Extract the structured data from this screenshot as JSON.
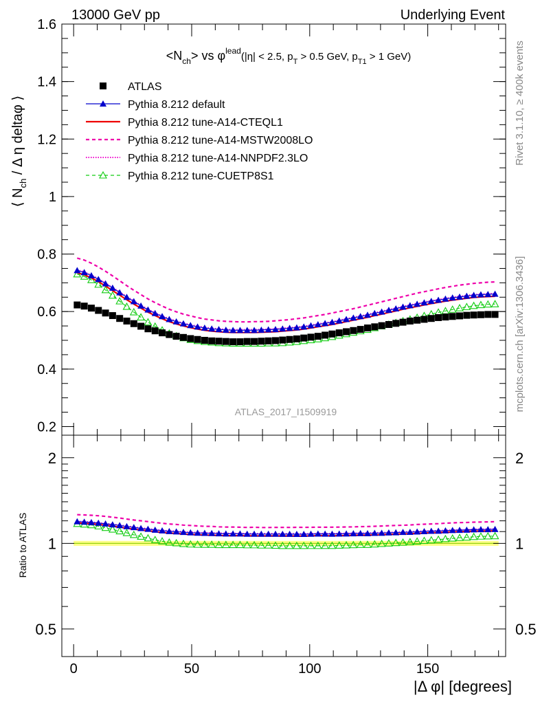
{
  "header": {
    "left": "13000 GeV pp",
    "right": "Underlying Event"
  },
  "plot_title": {
    "main": "<N",
    "main_sub": "ch",
    "main_rest": "> vs ",
    "phi": "φ",
    "phi_sup": "lead",
    "cuts_a": "(|η| < 2.5, p",
    "cuts_a_sub": "T",
    "cuts_b": " > 0.5 GeV, p",
    "cuts_b_sub": "T1",
    "cuts_c": " > 1 GeV)"
  },
  "ylabel_main": {
    "a": "⟨ N",
    "sub": "ch",
    "b": " / Δ η deltaφ ⟩"
  },
  "ylabel_ratio": "Ratio to ATLAS",
  "xlabel": "|Δ φ| [degrees]",
  "side_text": {
    "rivet": "Rivet 3.1.10, ≥ 400k events",
    "mcplots": "mcplots.cern.ch [arXiv:1306.3436]"
  },
  "analysis_label": "ATLAS_2017_I1509919",
  "colors": {
    "data": "#000000",
    "default": "#0000cc",
    "cteql1": "#ee0000",
    "mstw": "#ee00aa",
    "nnpdf": "#ee00cc",
    "cuetp": "#11cc11",
    "band": "#ffff88",
    "band_line": "#88cc00",
    "analysis": "#999999",
    "side": "#888888"
  },
  "chart_data": [
    {
      "type": "line",
      "panel": "main",
      "x": [
        1.5,
        4.5,
        7.5,
        10.5,
        13.5,
        16.5,
        19.5,
        22.5,
        25.5,
        28.5,
        31.5,
        34.5,
        37.5,
        40.5,
        43.5,
        46.5,
        49.5,
        52.5,
        55.5,
        58.5,
        61.5,
        64.5,
        67.5,
        70.5,
        73.5,
        76.5,
        79.5,
        82.5,
        85.5,
        88.5,
        91.5,
        94.5,
        97.5,
        100.5,
        103.5,
        106.5,
        109.5,
        112.5,
        115.5,
        118.5,
        121.5,
        124.5,
        127.5,
        130.5,
        133.5,
        136.5,
        139.5,
        142.5,
        145.5,
        148.5,
        151.5,
        154.5,
        157.5,
        160.5,
        163.5,
        166.5,
        169.5,
        172.5,
        175.5,
        178.5
      ],
      "ylim": [
        0.17,
        1.6
      ],
      "xlim": [
        -5,
        183
      ],
      "y_ticks": [
        "0.2",
        "0.4",
        "0.6",
        "0.8",
        "1",
        "1.2",
        "1.4",
        "1.6"
      ],
      "x_ticks": [
        "0",
        "50",
        "100",
        "150"
      ],
      "legend": "top-left",
      "series": [
        {
          "name": "ATLAS",
          "style": "data",
          "values": [
            0.623,
            0.619,
            0.612,
            0.604,
            0.595,
            0.586,
            0.576,
            0.567,
            0.558,
            0.549,
            0.54,
            0.533,
            0.526,
            0.52,
            0.514,
            0.51,
            0.506,
            0.503,
            0.5,
            0.498,
            0.497,
            0.496,
            0.495,
            0.495,
            0.496,
            0.496,
            0.497,
            0.498,
            0.499,
            0.501,
            0.503,
            0.505,
            0.508,
            0.511,
            0.514,
            0.518,
            0.522,
            0.526,
            0.53,
            0.534,
            0.538,
            0.543,
            0.547,
            0.551,
            0.555,
            0.559,
            0.563,
            0.567,
            0.57,
            0.573,
            0.576,
            0.579,
            0.581,
            0.583,
            0.585,
            0.587,
            0.588,
            0.589,
            0.59,
            0.59
          ]
        },
        {
          "name": "Pythia 8.212 default",
          "style": "default",
          "values": [
            0.743,
            0.736,
            0.725,
            0.712,
            0.697,
            0.682,
            0.666,
            0.65,
            0.635,
            0.62,
            0.606,
            0.594,
            0.583,
            0.573,
            0.565,
            0.558,
            0.552,
            0.547,
            0.543,
            0.54,
            0.538,
            0.536,
            0.535,
            0.535,
            0.535,
            0.535,
            0.536,
            0.537,
            0.538,
            0.54,
            0.542,
            0.544,
            0.547,
            0.551,
            0.555,
            0.559,
            0.563,
            0.568,
            0.573,
            0.578,
            0.583,
            0.588,
            0.594,
            0.599,
            0.605,
            0.61,
            0.616,
            0.621,
            0.626,
            0.631,
            0.636,
            0.64,
            0.644,
            0.648,
            0.651,
            0.654,
            0.657,
            0.659,
            0.66,
            0.661
          ]
        },
        {
          "name": "Pythia 8.212 tune-A14-CTEQL1",
          "style": "cteql1",
          "values": [
            0.735,
            0.728,
            0.717,
            0.704,
            0.689,
            0.673,
            0.657,
            0.641,
            0.626,
            0.612,
            0.598,
            0.586,
            0.575,
            0.565,
            0.557,
            0.55,
            0.544,
            0.539,
            0.535,
            0.532,
            0.53,
            0.528,
            0.527,
            0.527,
            0.527,
            0.527,
            0.528,
            0.529,
            0.53,
            0.532,
            0.534,
            0.536,
            0.539,
            0.543,
            0.547,
            0.551,
            0.555,
            0.56,
            0.565,
            0.57,
            0.575,
            0.58,
            0.586,
            0.591,
            0.597,
            0.602,
            0.608,
            0.613,
            0.618,
            0.623,
            0.628,
            0.632,
            0.636,
            0.64,
            0.643,
            0.646,
            0.649,
            0.651,
            0.652,
            0.653
          ]
        },
        {
          "name": "Pythia 8.212 tune-A14-MSTW2008LO",
          "style": "mstw",
          "values": [
            0.786,
            0.779,
            0.768,
            0.755,
            0.74,
            0.724,
            0.707,
            0.69,
            0.674,
            0.659,
            0.644,
            0.631,
            0.619,
            0.608,
            0.599,
            0.591,
            0.585,
            0.579,
            0.574,
            0.571,
            0.568,
            0.566,
            0.565,
            0.564,
            0.564,
            0.565,
            0.565,
            0.566,
            0.568,
            0.57,
            0.572,
            0.575,
            0.578,
            0.582,
            0.586,
            0.59,
            0.595,
            0.6,
            0.605,
            0.61,
            0.616,
            0.622,
            0.628,
            0.634,
            0.64,
            0.646,
            0.652,
            0.658,
            0.664,
            0.669,
            0.674,
            0.679,
            0.684,
            0.688,
            0.692,
            0.695,
            0.698,
            0.7,
            0.702,
            0.703
          ]
        },
        {
          "name": "Pythia 8.212 tune-A14-NNPDF2.3LO",
          "style": "nnpdf",
          "values": [
            0.745,
            0.738,
            0.727,
            0.714,
            0.699,
            0.684,
            0.668,
            0.652,
            0.637,
            0.622,
            0.608,
            0.596,
            0.585,
            0.575,
            0.567,
            0.56,
            0.554,
            0.549,
            0.545,
            0.542,
            0.54,
            0.538,
            0.537,
            0.537,
            0.537,
            0.537,
            0.538,
            0.539,
            0.54,
            0.542,
            0.544,
            0.546,
            0.549,
            0.553,
            0.557,
            0.561,
            0.565,
            0.57,
            0.575,
            0.58,
            0.585,
            0.59,
            0.596,
            0.601,
            0.607,
            0.612,
            0.618,
            0.623,
            0.628,
            0.633,
            0.638,
            0.642,
            0.646,
            0.65,
            0.653,
            0.656,
            0.659,
            0.661,
            0.662,
            0.663
          ]
        },
        {
          "name": "Pythia 8.212 tune-CUETP8S1",
          "style": "cuetp",
          "values": [
            0.73,
            0.722,
            0.71,
            0.694,
            0.675,
            0.656,
            0.636,
            0.617,
            0.598,
            0.58,
            0.563,
            0.548,
            0.535,
            0.524,
            0.515,
            0.508,
            0.502,
            0.498,
            0.495,
            0.493,
            0.491,
            0.49,
            0.489,
            0.489,
            0.489,
            0.489,
            0.489,
            0.49,
            0.49,
            0.491,
            0.493,
            0.495,
            0.498,
            0.501,
            0.504,
            0.508,
            0.512,
            0.517,
            0.522,
            0.527,
            0.532,
            0.537,
            0.543,
            0.549,
            0.555,
            0.561,
            0.567,
            0.573,
            0.579,
            0.585,
            0.591,
            0.597,
            0.602,
            0.607,
            0.612,
            0.616,
            0.62,
            0.623,
            0.625,
            0.626
          ]
        }
      ]
    },
    {
      "type": "line",
      "panel": "ratio",
      "ylabel": "Ratio to ATLAS",
      "xlabel": "|Δ φ| [degrees]",
      "ylim": [
        0.4,
        2.4
      ],
      "log_y": true,
      "y_ticks": [
        "0.5",
        "1",
        "2"
      ],
      "x_ticks": [
        "0",
        "50",
        "100",
        "150"
      ],
      "reference": 1.0,
      "band": 0.02
    }
  ]
}
